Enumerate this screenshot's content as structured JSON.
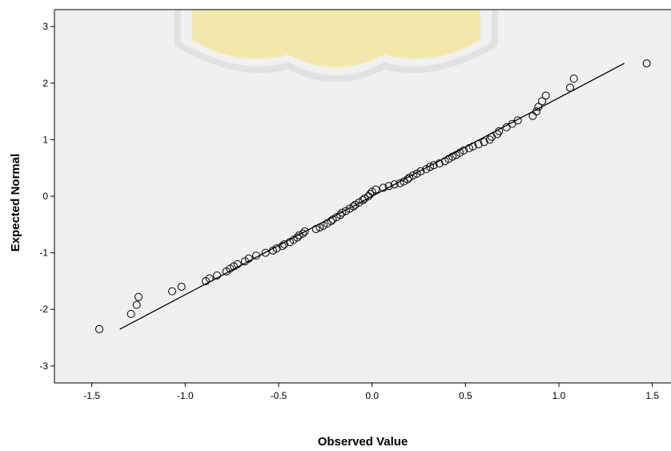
{
  "chart_data": {
    "type": "scatter",
    "title": "",
    "xlabel": "Observed Value",
    "ylabel": "Expected Normal",
    "xlim": [
      -1.7,
      1.6
    ],
    "ylim": [
      -3.3,
      3.3
    ],
    "x_ticks": [
      -1.5,
      -1.0,
      -0.5,
      0.0,
      0.5,
      1.0,
      1.5
    ],
    "x_tick_labels": [
      "-1.5",
      "-1.0",
      "-0.5",
      "0.0",
      "0.5",
      "1.0",
      "1.5"
    ],
    "y_ticks": [
      -3,
      -2,
      -1,
      0,
      1,
      2,
      3
    ],
    "y_tick_labels": [
      "-3",
      "-2",
      "-1",
      "0",
      "1",
      "2",
      "3"
    ],
    "grid": false,
    "legend": "none",
    "reference_line": {
      "x": [
        -1.35,
        1.35
      ],
      "y": [
        -2.35,
        2.35
      ]
    },
    "points": {
      "x": [
        -1.46,
        -1.29,
        -1.26,
        -1.25,
        -1.07,
        -1.02,
        -0.89,
        -0.87,
        -0.83,
        -0.78,
        -0.76,
        -0.74,
        -0.72,
        -0.68,
        -0.66,
        -0.62,
        -0.57,
        -0.53,
        -0.51,
        -0.48,
        -0.47,
        -0.44,
        -0.42,
        -0.4,
        -0.39,
        -0.37,
        -0.36,
        -0.3,
        -0.28,
        -0.26,
        -0.24,
        -0.22,
        -0.21,
        -0.19,
        -0.17,
        -0.16,
        -0.14,
        -0.12,
        -0.1,
        -0.09,
        -0.07,
        -0.05,
        -0.04,
        -0.02,
        -0.01,
        0.0,
        0.02,
        0.06,
        0.09,
        0.12,
        0.15,
        0.17,
        0.19,
        0.2,
        0.22,
        0.24,
        0.26,
        0.29,
        0.31,
        0.33,
        0.36,
        0.39,
        0.41,
        0.43,
        0.45,
        0.47,
        0.49,
        0.52,
        0.54,
        0.57,
        0.6,
        0.63,
        0.64,
        0.67,
        0.68,
        0.72,
        0.75,
        0.78,
        0.86,
        0.88,
        0.89,
        0.91,
        0.93,
        1.06,
        1.08,
        1.47
      ],
      "y": [
        -2.35,
        -2.08,
        -1.92,
        -1.78,
        -1.68,
        -1.6,
        -1.5,
        -1.45,
        -1.4,
        -1.33,
        -1.28,
        -1.24,
        -1.2,
        -1.15,
        -1.1,
        -1.05,
        -1.0,
        -0.96,
        -0.92,
        -0.88,
        -0.85,
        -0.81,
        -0.77,
        -0.73,
        -0.69,
        -0.66,
        -0.62,
        -0.58,
        -0.55,
        -0.52,
        -0.48,
        -0.44,
        -0.41,
        -0.37,
        -0.33,
        -0.29,
        -0.26,
        -0.22,
        -0.18,
        -0.15,
        -0.11,
        -0.07,
        -0.04,
        0.0,
        0.04,
        0.08,
        0.12,
        0.15,
        0.18,
        0.21,
        0.23,
        0.26,
        0.3,
        0.33,
        0.37,
        0.4,
        0.44,
        0.48,
        0.52,
        0.55,
        0.58,
        0.62,
        0.66,
        0.7,
        0.73,
        0.77,
        0.81,
        0.85,
        0.88,
        0.92,
        0.96,
        1.0,
        1.05,
        1.1,
        1.15,
        1.22,
        1.28,
        1.34,
        1.42,
        1.5,
        1.58,
        1.68,
        1.78,
        1.92,
        2.08,
        2.35
      ]
    },
    "colors": {
      "plot_background": "#f0f0f0",
      "marker_edge": "#000000",
      "line": "#000000",
      "watermark": "#f5e37a"
    }
  }
}
